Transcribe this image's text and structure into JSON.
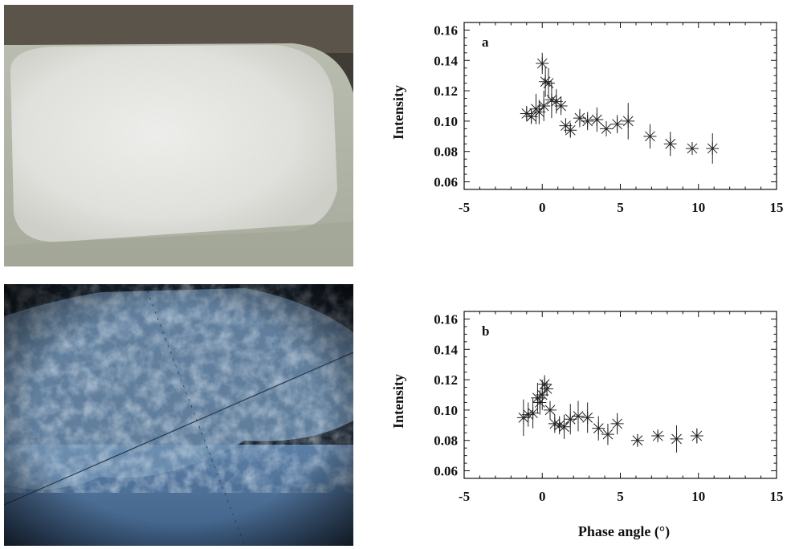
{
  "photos": [
    {
      "subject": "frost-grains-in-plastic-container"
    },
    {
      "subject": "microscope-view-of-ice-crystals"
    }
  ],
  "chart_data": [
    {
      "type": "scatter",
      "panel_label": "a",
      "ylabel": "Intensity",
      "xlabel": "",
      "xlim": [
        -5,
        15
      ],
      "ylim": [
        0.055,
        0.165
      ],
      "x_ticks": [
        "-5",
        "0",
        "5",
        "10",
        "15"
      ],
      "y_ticks": [
        "0.06",
        "0.08",
        "0.10",
        "0.12",
        "0.14",
        "0.16"
      ],
      "marker": "asterisk",
      "points": [
        {
          "x": -1.0,
          "y": 0.105,
          "err": 0.005
        },
        {
          "x": -0.7,
          "y": 0.103,
          "err": 0.005
        },
        {
          "x": -0.4,
          "y": 0.108,
          "err": 0.01
        },
        {
          "x": -0.2,
          "y": 0.106,
          "err": 0.008
        },
        {
          "x": 0.0,
          "y": 0.138,
          "err": 0.007
        },
        {
          "x": 0.1,
          "y": 0.11,
          "err": 0.01
        },
        {
          "x": 0.2,
          "y": 0.126,
          "err": 0.01
        },
        {
          "x": 0.4,
          "y": 0.125,
          "err": 0.01
        },
        {
          "x": 0.6,
          "y": 0.114,
          "err": 0.012
        },
        {
          "x": 0.9,
          "y": 0.113,
          "err": 0.008
        },
        {
          "x": 1.2,
          "y": 0.11,
          "err": 0.006
        },
        {
          "x": 1.5,
          "y": 0.097,
          "err": 0.005
        },
        {
          "x": 1.8,
          "y": 0.094,
          "err": 0.005
        },
        {
          "x": 2.4,
          "y": 0.102,
          "err": 0.006
        },
        {
          "x": 2.9,
          "y": 0.1,
          "err": 0.006
        },
        {
          "x": 3.5,
          "y": 0.101,
          "err": 0.008
        },
        {
          "x": 4.1,
          "y": 0.095,
          "err": 0.005
        },
        {
          "x": 4.8,
          "y": 0.098,
          "err": 0.006
        },
        {
          "x": 5.5,
          "y": 0.1,
          "err": 0.012
        },
        {
          "x": 6.9,
          "y": 0.09,
          "err": 0.008
        },
        {
          "x": 8.2,
          "y": 0.085,
          "err": 0.008
        },
        {
          "x": 9.6,
          "y": 0.082,
          "err": 0.004
        },
        {
          "x": 10.9,
          "y": 0.082,
          "err": 0.01
        }
      ]
    },
    {
      "type": "scatter",
      "panel_label": "b",
      "ylabel": "Intensity",
      "xlabel": "Phase angle (°)",
      "xlim": [
        -5,
        15
      ],
      "ylim": [
        0.055,
        0.165
      ],
      "x_ticks": [
        "-5",
        "0",
        "5",
        "10",
        "15"
      ],
      "y_ticks": [
        "0.06",
        "0.08",
        "0.10",
        "0.12",
        "0.14",
        "0.16"
      ],
      "marker": "asterisk",
      "points": [
        {
          "x": -1.2,
          "y": 0.095,
          "err": 0.012
        },
        {
          "x": -0.9,
          "y": 0.097,
          "err": 0.008
        },
        {
          "x": -0.6,
          "y": 0.098,
          "err": 0.01
        },
        {
          "x": -0.3,
          "y": 0.108,
          "err": 0.01
        },
        {
          "x": -0.15,
          "y": 0.105,
          "err": 0.008
        },
        {
          "x": 0.0,
          "y": 0.11,
          "err": 0.01
        },
        {
          "x": 0.15,
          "y": 0.117,
          "err": 0.006
        },
        {
          "x": 0.3,
          "y": 0.114,
          "err": 0.005
        },
        {
          "x": 0.5,
          "y": 0.1,
          "err": 0.006
        },
        {
          "x": 0.8,
          "y": 0.091,
          "err": 0.006
        },
        {
          "x": 1.1,
          "y": 0.09,
          "err": 0.006
        },
        {
          "x": 1.4,
          "y": 0.089,
          "err": 0.008
        },
        {
          "x": 1.8,
          "y": 0.094,
          "err": 0.01
        },
        {
          "x": 2.3,
          "y": 0.096,
          "err": 0.01
        },
        {
          "x": 2.9,
          "y": 0.095,
          "err": 0.01
        },
        {
          "x": 3.6,
          "y": 0.088,
          "err": 0.008
        },
        {
          "x": 4.2,
          "y": 0.084,
          "err": 0.007
        },
        {
          "x": 4.8,
          "y": 0.091,
          "err": 0.007
        },
        {
          "x": 6.1,
          "y": 0.08,
          "err": 0.004
        },
        {
          "x": 7.4,
          "y": 0.083,
          "err": 0.003
        },
        {
          "x": 8.6,
          "y": 0.081,
          "err": 0.009
        },
        {
          "x": 9.9,
          "y": 0.083,
          "err": 0.005
        }
      ]
    }
  ]
}
